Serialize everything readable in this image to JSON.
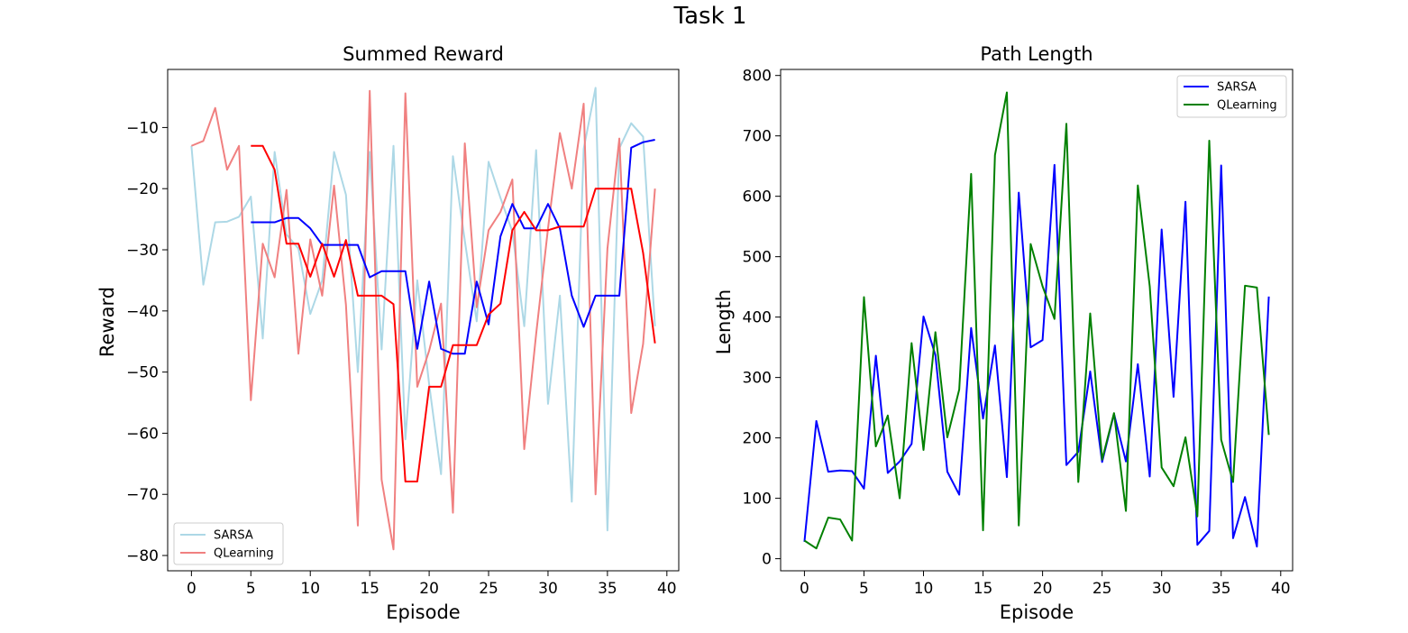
{
  "suptitle": "Task 1",
  "chart_data": [
    {
      "type": "line",
      "title": "Summed Reward",
      "xlabel": "Episode",
      "ylabel": "Reward",
      "xlim": [
        -2,
        41
      ],
      "ylim": [
        -82.5,
        -0.5
      ],
      "xticks": [
        0,
        5,
        10,
        15,
        20,
        25,
        30,
        35,
        40
      ],
      "yticks": [
        -80,
        -70,
        -60,
        -50,
        -40,
        -30,
        -20,
        -10
      ],
      "grid": false,
      "legend_position": "lower-left",
      "series": [
        {
          "name": "SARSA",
          "color": "#add8e6",
          "in_legend": true,
          "x": [
            0,
            1,
            2,
            3,
            4,
            5,
            6,
            7,
            8,
            9,
            10,
            11,
            12,
            13,
            14,
            15,
            16,
            17,
            18,
            19,
            20,
            21,
            22,
            23,
            24,
            25,
            26,
            27,
            28,
            29,
            30,
            31,
            32,
            33,
            34,
            35,
            36,
            37,
            38,
            39
          ],
          "y": [
            -13,
            -35.7,
            -25.5,
            -25.4,
            -24.6,
            -21.3,
            -44.5,
            -14,
            -27.5,
            -29.8,
            -40.5,
            -35,
            -14,
            -21,
            -50,
            -14,
            -46.3,
            -13,
            -61,
            -35,
            -52,
            -66.7,
            -14.7,
            -28.5,
            -41.7,
            -15.6,
            -21.5,
            -27,
            -42.5,
            -13.7,
            -55.2,
            -37.5,
            -71.2,
            -13.5,
            -3.5,
            -75.9,
            -13.4,
            -9.3,
            -11.5,
            -42.5
          ]
        },
        {
          "name": "QLearning",
          "color": "#f08080",
          "in_legend": true,
          "x": [
            0,
            1,
            2,
            3,
            4,
            5,
            6,
            7,
            8,
            9,
            10,
            11,
            12,
            13,
            14,
            15,
            16,
            17,
            18,
            19,
            20,
            21,
            22,
            23,
            24,
            25,
            26,
            27,
            28,
            29,
            30,
            31,
            32,
            33,
            34,
            35,
            36,
            37,
            38,
            39
          ],
          "y": [
            -13,
            -12.2,
            -6.8,
            -16.9,
            -13,
            -54.6,
            -29,
            -34.5,
            -20.2,
            -47,
            -28.3,
            -37.5,
            -19.5,
            -39,
            -75.1,
            -4,
            -67.6,
            -79,
            -4.4,
            -52.4,
            -46.5,
            -38.8,
            -73,
            -12.6,
            -39.4,
            -26.8,
            -23.8,
            -18.5,
            -62.6,
            -43.8,
            -26.5,
            -10.9,
            -20,
            -6.1,
            -70,
            -29.8,
            -11.8,
            -56.7,
            -45.4,
            -20
          ]
        },
        {
          "name": "",
          "color": "#0000ff",
          "in_legend": false,
          "x": [
            5,
            6,
            7,
            8,
            9,
            10,
            11,
            12,
            13,
            14,
            15,
            16,
            17,
            18,
            19,
            20,
            21,
            22,
            23,
            24,
            25,
            26,
            27,
            28,
            29,
            30,
            31,
            32,
            33,
            34,
            35,
            36,
            37,
            38,
            39
          ],
          "y": [
            -25.5,
            -25.5,
            -25.5,
            -24.8,
            -24.8,
            -26.5,
            -29.2,
            -29.2,
            -29.2,
            -29.2,
            -34.5,
            -33.5,
            -33.5,
            -33.5,
            -46.2,
            -35.2,
            -46.2,
            -47,
            -47,
            -35.2,
            -42.2,
            -27.8,
            -22.5,
            -26.5,
            -26.5,
            -22.5,
            -26.5,
            -37.5,
            -42.6,
            -37.5,
            -37.5,
            -37.5,
            -13.3,
            -12.4,
            -12
          ]
        },
        {
          "name": "",
          "color": "#ff0000",
          "in_legend": false,
          "x": [
            5,
            6,
            7,
            8,
            9,
            10,
            11,
            12,
            13,
            14,
            15,
            16,
            17,
            18,
            19,
            20,
            21,
            22,
            23,
            24,
            25,
            26,
            27,
            28,
            29,
            30,
            31,
            32,
            33,
            34,
            35,
            36,
            37,
            38,
            39
          ],
          "y": [
            -13,
            -13,
            -16.9,
            -29,
            -29,
            -34.4,
            -29,
            -34.4,
            -28.4,
            -37.5,
            -37.5,
            -37.5,
            -38.9,
            -67.9,
            -67.9,
            -52.4,
            -52.4,
            -45.6,
            -45.6,
            -45.6,
            -40.6,
            -38.8,
            -26.8,
            -23.8,
            -26.8,
            -26.8,
            -26.2,
            -26.2,
            -26.2,
            -20,
            -20,
            -20,
            -20,
            -30.5,
            -45.3
          ]
        }
      ]
    },
    {
      "type": "line",
      "title": "Path Length",
      "xlabel": "Episode",
      "ylabel": "Length",
      "xlim": [
        -2,
        41
      ],
      "ylim": [
        -20,
        810
      ],
      "xticks": [
        0,
        5,
        10,
        15,
        20,
        25,
        30,
        35,
        40
      ],
      "yticks": [
        0,
        100,
        200,
        300,
        400,
        500,
        600,
        700,
        800
      ],
      "grid": false,
      "legend_position": "top-right",
      "series": [
        {
          "name": "SARSA",
          "color": "#0000ff",
          "in_legend": true,
          "x": [
            0,
            1,
            2,
            3,
            4,
            5,
            6,
            7,
            8,
            9,
            10,
            11,
            12,
            13,
            14,
            15,
            16,
            17,
            18,
            19,
            20,
            21,
            22,
            23,
            24,
            25,
            26,
            27,
            28,
            29,
            30,
            31,
            32,
            33,
            34,
            35,
            36,
            37,
            38,
            39
          ],
          "y": [
            28,
            228,
            144,
            146,
            145,
            116,
            336,
            142,
            161,
            190,
            401,
            337,
            144,
            106,
            382,
            232,
            353,
            135,
            606,
            350,
            362,
            652,
            155,
            177,
            310,
            160,
            240,
            161,
            322,
            136,
            545,
            268,
            591,
            23,
            46,
            651,
            34,
            102,
            20,
            434
          ]
        },
        {
          "name": "QLearning",
          "color": "#008000",
          "in_legend": true,
          "x": [
            0,
            1,
            2,
            3,
            4,
            5,
            6,
            7,
            8,
            9,
            10,
            11,
            12,
            13,
            14,
            15,
            16,
            17,
            18,
            19,
            20,
            21,
            22,
            23,
            24,
            25,
            26,
            27,
            28,
            29,
            30,
            31,
            32,
            33,
            34,
            35,
            36,
            37,
            38,
            39
          ],
          "y": [
            30,
            17,
            68,
            65,
            30,
            433,
            186,
            237,
            100,
            357,
            180,
            375,
            201,
            280,
            637,
            47,
            668,
            772,
            55,
            521,
            451,
            397,
            720,
            127,
            406,
            164,
            241,
            79,
            618,
            451,
            151,
            120,
            201,
            70,
            692,
            197,
            127,
            452,
            449,
            205
          ]
        }
      ]
    }
  ]
}
